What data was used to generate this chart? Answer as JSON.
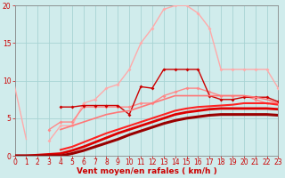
{
  "xlabel": "Vent moyen/en rafales ( km/h )",
  "bg_color": "#d0ecec",
  "grid_color": "#a8d4d4",
  "x": [
    0,
    1,
    2,
    3,
    4,
    5,
    6,
    7,
    8,
    9,
    10,
    11,
    12,
    13,
    14,
    15,
    16,
    17,
    18,
    19,
    20,
    21,
    22,
    23
  ],
  "lines": [
    {
      "y": [
        9.2,
        2.2,
        null,
        null,
        null,
        null,
        null,
        null,
        null,
        null,
        null,
        null,
        null,
        null,
        null,
        null,
        null,
        null,
        null,
        null,
        null,
        null,
        null,
        null
      ],
      "color": "#ffaaaa",
      "lw": 1.0,
      "marker": null,
      "ms": 0
    },
    {
      "y": [
        null,
        null,
        null,
        2.0,
        4.0,
        4.0,
        7.0,
        7.5,
        9.0,
        9.5,
        11.5,
        15.0,
        17.0,
        19.5,
        20.0,
        20.0,
        19.0,
        17.0,
        11.5,
        11.5,
        11.5,
        11.5,
        11.5,
        9.0
      ],
      "color": "#ffaaaa",
      "lw": 1.0,
      "marker": "D",
      "ms": 2.0
    },
    {
      "y": [
        null,
        null,
        null,
        3.5,
        4.5,
        4.5,
        6.5,
        6.5,
        6.5,
        6.5,
        6.5,
        7.0,
        7.0,
        8.0,
        8.5,
        9.0,
        9.0,
        8.5,
        8.0,
        8.0,
        8.0,
        7.5,
        7.0,
        7.0
      ],
      "color": "#ff8888",
      "lw": 1.0,
      "marker": "D",
      "ms": 2.0
    },
    {
      "y": [
        null,
        null,
        null,
        null,
        6.5,
        6.5,
        6.7,
        6.7,
        6.7,
        6.7,
        5.5,
        9.2,
        9.0,
        11.5,
        11.5,
        11.5,
        11.5,
        8.0,
        7.5,
        7.5,
        7.8,
        7.8,
        7.8,
        7.2
      ],
      "color": "#cc0000",
      "lw": 1.0,
      "marker": "D",
      "ms": 2.0
    },
    {
      "y": [
        null,
        null,
        null,
        null,
        3.5,
        4.0,
        4.5,
        5.0,
        5.5,
        5.8,
        6.0,
        6.5,
        7.0,
        7.5,
        8.0,
        8.0,
        8.0,
        8.0,
        8.0,
        8.0,
        8.0,
        7.8,
        7.5,
        7.0
      ],
      "color": "#ff7777",
      "lw": 1.2,
      "marker": null,
      "ms": 0
    },
    {
      "y": [
        null,
        null,
        null,
        null,
        0.8,
        1.2,
        1.8,
        2.4,
        3.0,
        3.5,
        4.0,
        4.5,
        5.0,
        5.5,
        6.0,
        6.3,
        6.5,
        6.6,
        6.7,
        6.8,
        7.0,
        7.0,
        7.0,
        6.8
      ],
      "color": "#ff2222",
      "lw": 1.5,
      "marker": null,
      "ms": 0
    },
    {
      "y": [
        0,
        0,
        null,
        null,
        0.3,
        0.7,
        1.2,
        1.8,
        2.4,
        3.0,
        3.5,
        4.0,
        4.5,
        5.0,
        5.5,
        5.8,
        6.0,
        6.2,
        6.3,
        6.3,
        6.3,
        6.3,
        6.3,
        6.2
      ],
      "color": "#dd0000",
      "lw": 2.0,
      "marker": null,
      "ms": 0
    },
    {
      "y": [
        0,
        0,
        null,
        null,
        0,
        0.3,
        0.7,
        1.2,
        1.7,
        2.2,
        2.8,
        3.3,
        3.8,
        4.3,
        4.7,
        5.0,
        5.2,
        5.4,
        5.5,
        5.5,
        5.5,
        5.5,
        5.5,
        5.4
      ],
      "color": "#990000",
      "lw": 2.2,
      "marker": null,
      "ms": 0
    }
  ],
  "ylim": [
    0,
    20
  ],
  "xlim": [
    0,
    23
  ],
  "yticks": [
    0,
    5,
    10,
    15,
    20
  ],
  "xticks": [
    0,
    1,
    2,
    3,
    4,
    5,
    6,
    7,
    8,
    9,
    10,
    11,
    12,
    13,
    14,
    15,
    16,
    17,
    18,
    19,
    20,
    21,
    22,
    23
  ],
  "xlabel_color": "#cc0000",
  "tick_color": "#cc0000",
  "axis_color": "#888888",
  "label_fontsize": 6.5,
  "tick_fontsize": 5.5
}
